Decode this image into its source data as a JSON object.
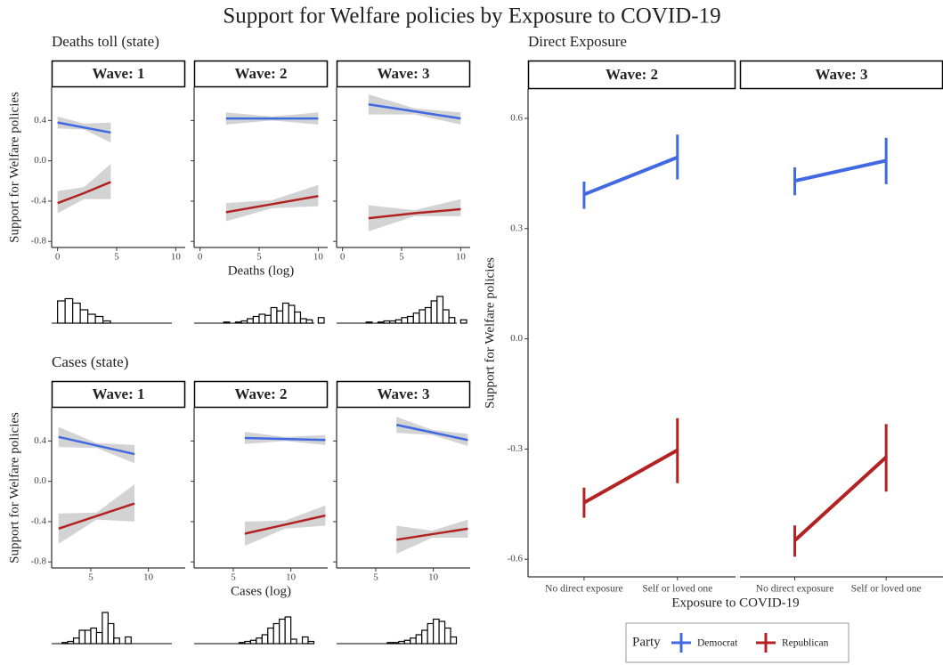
{
  "title": "Support for Welfare policies by Exposure to COVID-19",
  "legend": {
    "title": "Party"
  },
  "chart_data": [
    {
      "type": "smooth",
      "title": "Deaths toll (state)",
      "x_label": "Deaths (log)",
      "y_label": "Support for Welfare policies",
      "xlim": [
        -0.5,
        10.8
      ],
      "xticks": [
        0,
        5,
        10
      ],
      "ylim": [
        -0.86,
        0.73
      ],
      "yticks": [
        -0.8,
        -0.4,
        {
          "value": 0,
          "label": "0.0"
        },
        0.4
      ],
      "facets": [
        {
          "label": "Wave: 1",
          "series": [
            {
              "name": "Democrat",
              "color": "#4169e1",
              "x": [
                0,
                2.25,
                4.5
              ],
              "values": [
                0.38,
                0.33,
                0.28
              ],
              "lower": [
                0.32,
                0.31,
                0.18
              ],
              "upper": [
                0.44,
                0.37,
                0.38
              ]
            },
            {
              "name": "Republican",
              "color": "#b22222",
              "x": [
                0,
                2.25,
                4.5
              ],
              "values": [
                -0.42,
                -0.32,
                -0.21
              ],
              "lower": [
                -0.52,
                -0.38,
                -0.38
              ],
              "upper": [
                -0.3,
                -0.26,
                -0.03
              ]
            }
          ],
          "hist": {
            "bins": [
              0,
              0.64,
              1.28,
              1.92,
              2.56,
              3.2,
              3.84,
              4.48
            ],
            "counts": [
              20,
              22,
              18,
              12,
              8,
              6,
              2
            ]
          }
        },
        {
          "label": "Wave: 2",
          "series": [
            {
              "name": "Democrat",
              "color": "#4169e1",
              "x": [
                2.2,
                6.1,
                10
              ],
              "values": [
                0.42,
                0.42,
                0.42
              ],
              "lower": [
                0.36,
                0.4,
                0.36
              ],
              "upper": [
                0.48,
                0.44,
                0.48
              ]
            },
            {
              "name": "Republican",
              "color": "#b22222",
              "x": [
                2.2,
                6.1,
                10
              ],
              "values": [
                -0.51,
                -0.43,
                -0.35
              ],
              "lower": [
                -0.6,
                -0.47,
                -0.45
              ],
              "upper": [
                -0.42,
                -0.39,
                -0.24
              ]
            }
          ],
          "hist": {
            "bins": [
              2,
              2.5,
              3,
              3.5,
              4,
              4.5,
              5,
              5.5,
              6,
              6.5,
              7,
              7.5,
              8,
              8.5,
              9,
              9.5,
              10,
              10.5
            ],
            "counts": [
              1,
              0,
              1,
              2,
              4,
              6,
              8,
              7,
              14,
              11,
              18,
              16,
              10,
              4,
              3,
              0,
              5
            ]
          }
        },
        {
          "label": "Wave: 3",
          "series": [
            {
              "name": "Democrat",
              "color": "#4169e1",
              "x": [
                2.2,
                6.1,
                10
              ],
              "values": [
                0.56,
                0.49,
                0.42
              ],
              "lower": [
                0.46,
                0.46,
                0.36
              ],
              "upper": [
                0.66,
                0.52,
                0.48
              ]
            },
            {
              "name": "Republican",
              "color": "#b22222",
              "x": [
                2.2,
                6.1,
                10
              ],
              "values": [
                -0.57,
                -0.52,
                -0.48
              ],
              "lower": [
                -0.7,
                -0.55,
                -0.55
              ],
              "upper": [
                -0.44,
                -0.49,
                -0.38
              ]
            }
          ],
          "hist": {
            "bins": [
              2,
              2.5,
              3,
              3.5,
              4,
              4.5,
              5,
              5.5,
              6,
              6.5,
              7,
              7.5,
              8,
              8.5,
              9,
              9.5,
              10,
              10.5
            ],
            "counts": [
              1,
              0,
              1,
              2,
              2,
              3,
              5,
              6,
              9,
              12,
              14,
              20,
              24,
              12,
              5,
              0,
              3
            ]
          }
        }
      ]
    },
    {
      "type": "smooth",
      "title": "Cases (state)",
      "x_label": "Cases (log)",
      "y_label": "Support for Welfare policies",
      "xlim": [
        1.6,
        13.2
      ],
      "xticks": [
        5,
        10
      ],
      "ylim": [
        -0.86,
        0.73
      ],
      "yticks": [
        -0.8,
        -0.4,
        {
          "value": 0,
          "label": "0.0"
        },
        0.4
      ],
      "facets": [
        {
          "label": "Wave: 1",
          "series": [
            {
              "name": "Democrat",
              "color": "#4169e1",
              "x": [
                2.2,
                5.5,
                8.8
              ],
              "values": [
                0.44,
                0.355,
                0.27
              ],
              "lower": [
                0.34,
                0.33,
                0.18
              ],
              "upper": [
                0.54,
                0.38,
                0.36
              ]
            },
            {
              "name": "Republican",
              "color": "#b22222",
              "x": [
                2.2,
                5.5,
                8.8
              ],
              "values": [
                -0.47,
                -0.345,
                -0.22
              ],
              "lower": [
                -0.62,
                -0.38,
                -0.4
              ],
              "upper": [
                -0.32,
                -0.31,
                -0.03
              ]
            }
          ],
          "hist": {
            "bins": [
              2.5,
              3,
              3.5,
              4,
              4.5,
              5,
              5.5,
              6,
              6.5,
              7,
              7.5,
              8,
              8.5
            ],
            "counts": [
              1,
              2,
              5,
              12,
              12,
              14,
              10,
              28,
              18,
              5,
              0,
              6
            ]
          }
        },
        {
          "label": "Wave: 2",
          "series": [
            {
              "name": "Democrat",
              "color": "#4169e1",
              "x": [
                6,
                9.5,
                13
              ],
              "values": [
                0.43,
                0.42,
                0.41
              ],
              "lower": [
                0.37,
                0.4,
                0.36
              ],
              "upper": [
                0.49,
                0.44,
                0.46
              ]
            },
            {
              "name": "Republican",
              "color": "#b22222",
              "x": [
                6,
                9.5,
                13
              ],
              "values": [
                -0.52,
                -0.43,
                -0.34
              ],
              "lower": [
                -0.64,
                -0.47,
                -0.44
              ],
              "upper": [
                -0.4,
                -0.39,
                -0.24
              ]
            }
          ],
          "hist": {
            "bins": [
              5.5,
              6,
              6.5,
              7,
              7.5,
              8,
              8.5,
              9,
              9.5,
              10,
              10.5,
              11,
              11.5,
              12
            ],
            "counts": [
              1,
              2,
              3,
              5,
              8,
              14,
              18,
              22,
              24,
              4,
              0,
              6,
              2
            ]
          }
        },
        {
          "label": "Wave: 3",
          "series": [
            {
              "name": "Democrat",
              "color": "#4169e1",
              "x": [
                6.8,
                9.9,
                13
              ],
              "values": [
                0.56,
                0.485,
                0.41
              ],
              "lower": [
                0.48,
                0.46,
                0.35
              ],
              "upper": [
                0.64,
                0.51,
                0.47
              ]
            },
            {
              "name": "Republican",
              "color": "#b22222",
              "x": [
                6.8,
                9.9,
                13
              ],
              "values": [
                -0.58,
                -0.525,
                -0.47
              ],
              "lower": [
                -0.72,
                -0.56,
                -0.56
              ],
              "upper": [
                -0.44,
                -0.49,
                -0.38
              ]
            }
          ],
          "hist": {
            "bins": [
              6,
              6.5,
              7,
              7.5,
              8,
              8.5,
              9,
              9.5,
              10,
              10.5,
              11,
              11.5,
              12
            ],
            "counts": [
              1,
              1,
              2,
              3,
              5,
              8,
              12,
              18,
              22,
              20,
              14,
              6
            ]
          }
        }
      ]
    },
    {
      "type": "errorbar",
      "title": "Direct Exposure",
      "x_label": "Exposure to COVID-19",
      "y_label": "Support for Welfare policies",
      "categories": [
        "No direct exposure",
        "Self or loved one"
      ],
      "ylim": [
        -0.648,
        0.68
      ],
      "yticks": [
        -0.6,
        -0.3,
        {
          "value": 0,
          "label": "0.0"
        },
        0.3,
        0.6
      ],
      "facets": [
        {
          "label": "Wave: 2",
          "series": [
            {
              "name": "Democrat",
              "color": "#4169e1",
              "values": [
                0.393,
                0.494
              ],
              "lower": [
                0.354,
                0.434
              ],
              "upper": [
                0.428,
                0.556
              ]
            },
            {
              "name": "Republican",
              "color": "#b22222",
              "values": [
                -0.446,
                -0.303
              ],
              "lower": [
                -0.487,
                -0.393
              ],
              "upper": [
                -0.405,
                -0.216
              ]
            }
          ]
        },
        {
          "label": "Wave: 3",
          "series": [
            {
              "name": "Democrat",
              "color": "#4169e1",
              "values": [
                0.43,
                0.485
              ],
              "lower": [
                0.391,
                0.421
              ],
              "upper": [
                0.467,
                0.547
              ]
            },
            {
              "name": "Republican",
              "color": "#b22222",
              "values": [
                -0.549,
                -0.322
              ],
              "lower": [
                -0.593,
                -0.416
              ],
              "upper": [
                -0.508,
                -0.232
              ]
            }
          ]
        }
      ]
    }
  ]
}
